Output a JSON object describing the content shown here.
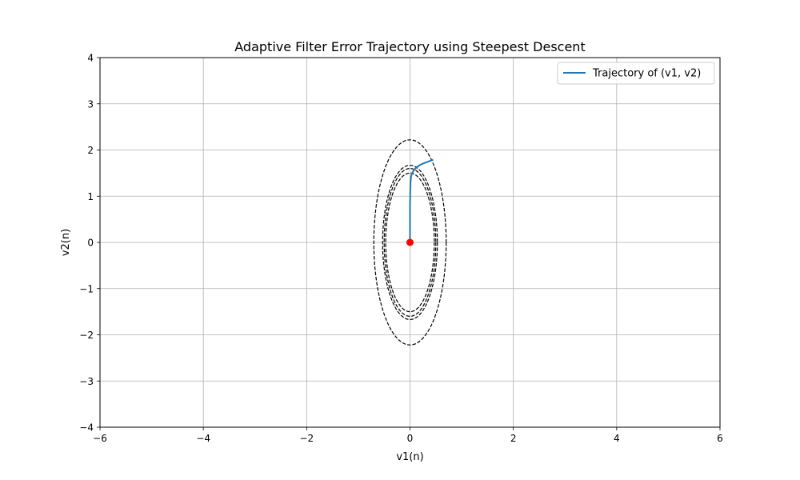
{
  "chart_data": {
    "type": "line",
    "title": "Adaptive Filter Error Trajectory using Steepest Descent",
    "xlabel": "v1(n)",
    "ylabel": "v2(n)",
    "xlim": [
      -6,
      6
    ],
    "ylim": [
      -4,
      4
    ],
    "xticks": [
      -6,
      -4,
      -2,
      0,
      2,
      4,
      6
    ],
    "xtick_labels": [
      "−6",
      "−4",
      "−2",
      "0",
      "2",
      "4",
      "6"
    ],
    "yticks": [
      -4,
      -3,
      -2,
      -1,
      0,
      1,
      2,
      3,
      4
    ],
    "ytick_labels": [
      "−4",
      "−3",
      "−2",
      "−1",
      "0",
      "1",
      "2",
      "3",
      "4"
    ],
    "grid": true,
    "legend_position": "top-right",
    "series": [
      {
        "name": "Trajectory of (v1, v2)",
        "color": "#1f77b4",
        "x": [
          0.45,
          0.38,
          0.28,
          0.2,
          0.13,
          0.08,
          0.04,
          0.02,
          0.01,
          0.005,
          0.0,
          0.0,
          0.0
        ],
        "y": [
          1.79,
          1.76,
          1.72,
          1.68,
          1.63,
          1.57,
          1.5,
          1.42,
          1.3,
          1.1,
          0.8,
          0.4,
          0.0
        ]
      }
    ],
    "contours": [
      {
        "rx": 0.7,
        "ry": 2.22
      },
      {
        "rx": 0.53,
        "ry": 1.67
      },
      {
        "rx": 0.5,
        "ry": 1.6
      },
      {
        "rx": 0.47,
        "ry": 1.5
      }
    ],
    "contour_color": "#000000",
    "minimum_point": {
      "x": 0,
      "y": 0,
      "color": "#ff0000"
    }
  }
}
